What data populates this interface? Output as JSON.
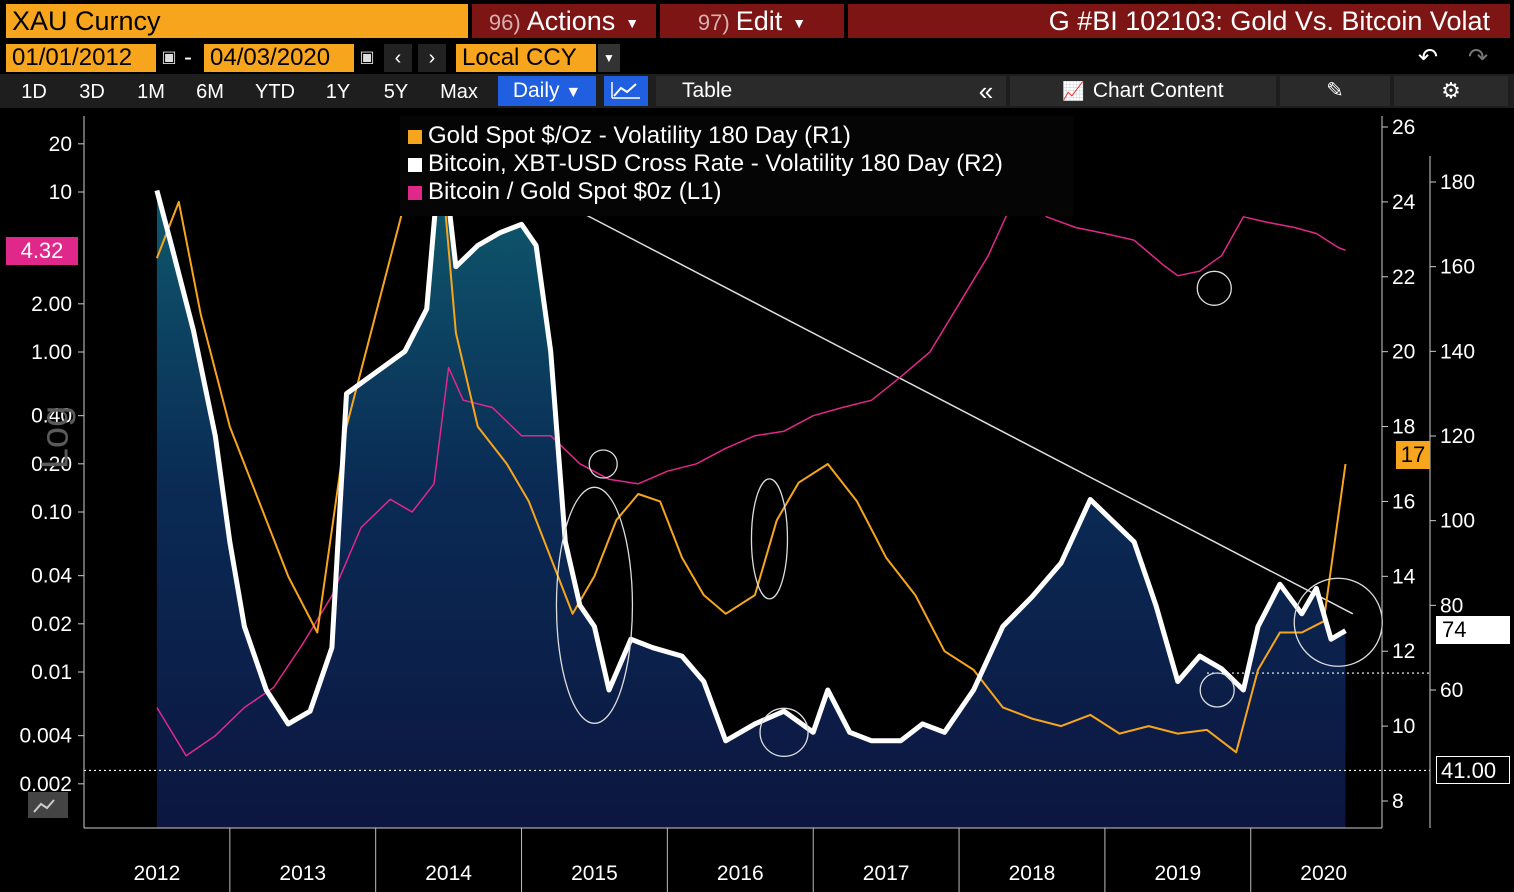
{
  "toolbar": {
    "ticker": "XAU Curncy",
    "actions_num": "96)",
    "actions_label": "Actions",
    "edit_num": "97)",
    "edit_label": "Edit",
    "title": "G #BI 102103: Gold Vs. Bitcoin Volat"
  },
  "date_range": {
    "start": "01/01/2012",
    "separator": "-",
    "end": "04/03/2020",
    "currency": "Local CCY"
  },
  "periods": [
    "1D",
    "3D",
    "1M",
    "6M",
    "YTD",
    "1Y",
    "5Y",
    "Max"
  ],
  "frequency": "Daily",
  "buttons": {
    "table": "Table",
    "collapse": "«",
    "chart_content": "Chart Content"
  },
  "legend": [
    {
      "label": "Gold Spot $/Oz - Volatility 180 Day (R1)",
      "color": "#f7a51c"
    },
    {
      "label": "Bitcoin, XBT-USD Cross Rate - Volatility 180 Day (R2)",
      "color": "#ffffff"
    },
    {
      "label": "Bitcoin / Gold Spot $0z (L1)",
      "color": "#e0288a"
    }
  ],
  "axis_left_title": "Log",
  "tags": {
    "left_value": "4.32",
    "r1_value": "17",
    "r2_value": "74",
    "ref_value": "41.00"
  },
  "chart_data": {
    "type": "line",
    "x_labels": [
      "2012",
      "2013",
      "2014",
      "2015",
      "2016",
      "2017",
      "2018",
      "2019",
      "2020"
    ],
    "y_left_ticks": [
      "20",
      "10",
      "2.00",
      "1.00",
      "0.40",
      "0.20",
      "0.10",
      "0.04",
      "0.02",
      "0.01",
      "0.004",
      "0.002"
    ],
    "y_left_scale": "log",
    "y_r1_ticks": [
      "26",
      "24",
      "22",
      "20",
      "18",
      "16",
      "14",
      "12",
      "10",
      "8"
    ],
    "y_r2_ticks": [
      "180",
      "160",
      "140",
      "120",
      "100",
      "80",
      "60"
    ],
    "series": [
      {
        "name": "Gold Spot $/Oz - Volatility 180 Day (R1)",
        "axis": "R1",
        "color": "#f7a51c",
        "points": [
          [
            2012.0,
            22.5
          ],
          [
            2012.15,
            24.0
          ],
          [
            2012.3,
            21.0
          ],
          [
            2012.5,
            18.0
          ],
          [
            2012.7,
            16.0
          ],
          [
            2012.9,
            14.0
          ],
          [
            2013.1,
            12.5
          ],
          [
            2013.3,
            18.0
          ],
          [
            2013.5,
            21.0
          ],
          [
            2013.7,
            24.0
          ],
          [
            2013.95,
            25.0
          ],
          [
            2014.05,
            20.5
          ],
          [
            2014.2,
            18.0
          ],
          [
            2014.4,
            17.0
          ],
          [
            2014.55,
            16.0
          ],
          [
            2014.7,
            14.5
          ],
          [
            2014.85,
            13.0
          ],
          [
            2015.0,
            14.0
          ],
          [
            2015.15,
            15.5
          ],
          [
            2015.3,
            16.2
          ],
          [
            2015.45,
            16.0
          ],
          [
            2015.6,
            14.5
          ],
          [
            2015.75,
            13.5
          ],
          [
            2015.9,
            13.0
          ],
          [
            2016.1,
            13.5
          ],
          [
            2016.25,
            15.5
          ],
          [
            2016.4,
            16.5
          ],
          [
            2016.6,
            17.0
          ],
          [
            2016.8,
            16.0
          ],
          [
            2017.0,
            14.5
          ],
          [
            2017.2,
            13.5
          ],
          [
            2017.4,
            12.0
          ],
          [
            2017.6,
            11.5
          ],
          [
            2017.8,
            10.5
          ],
          [
            2018.0,
            10.2
          ],
          [
            2018.2,
            10.0
          ],
          [
            2018.4,
            10.3
          ],
          [
            2018.6,
            9.8
          ],
          [
            2018.8,
            10.0
          ],
          [
            2019.0,
            9.8
          ],
          [
            2019.2,
            9.9
          ],
          [
            2019.4,
            9.3
          ],
          [
            2019.55,
            11.5
          ],
          [
            2019.7,
            12.5
          ],
          [
            2019.85,
            12.5
          ],
          [
            2020.0,
            12.8
          ],
          [
            2020.15,
            17.0
          ]
        ]
      },
      {
        "name": "Bitcoin, XBT-USD Cross Rate - Volatility 180 Day (R2)",
        "axis": "R2",
        "color": "#ffffff",
        "points": [
          [
            2012.0,
            178.0
          ],
          [
            2012.1,
            165.0
          ],
          [
            2012.25,
            145.0
          ],
          [
            2012.4,
            120.0
          ],
          [
            2012.5,
            95.0
          ],
          [
            2012.6,
            75.0
          ],
          [
            2012.75,
            60.0
          ],
          [
            2012.9,
            52.0
          ],
          [
            2013.05,
            55.0
          ],
          [
            2013.2,
            70.0
          ],
          [
            2013.3,
            130.0
          ],
          [
            2013.5,
            135.0
          ],
          [
            2013.7,
            140.0
          ],
          [
            2013.85,
            150.0
          ],
          [
            2013.95,
            190.0
          ],
          [
            2014.05,
            160.0
          ],
          [
            2014.2,
            165.0
          ],
          [
            2014.35,
            168.0
          ],
          [
            2014.5,
            170.0
          ],
          [
            2014.6,
            165.0
          ],
          [
            2014.7,
            140.0
          ],
          [
            2014.8,
            95.0
          ],
          [
            2014.9,
            80.0
          ],
          [
            2015.0,
            75.0
          ],
          [
            2015.1,
            60.0
          ],
          [
            2015.25,
            72.0
          ],
          [
            2015.4,
            70.0
          ],
          [
            2015.6,
            68.0
          ],
          [
            2015.75,
            62.0
          ],
          [
            2015.9,
            48.0
          ],
          [
            2016.1,
            52.0
          ],
          [
            2016.3,
            55.0
          ],
          [
            2016.5,
            50.0
          ],
          [
            2016.6,
            60.0
          ],
          [
            2016.75,
            50.0
          ],
          [
            2016.9,
            48.0
          ],
          [
            2017.1,
            48.0
          ],
          [
            2017.25,
            52.0
          ],
          [
            2017.4,
            50.0
          ],
          [
            2017.6,
            60.0
          ],
          [
            2017.8,
            75.0
          ],
          [
            2018.0,
            82.0
          ],
          [
            2018.2,
            90.0
          ],
          [
            2018.4,
            105.0
          ],
          [
            2018.55,
            100.0
          ],
          [
            2018.7,
            95.0
          ],
          [
            2018.85,
            80.0
          ],
          [
            2019.0,
            62.0
          ],
          [
            2019.15,
            68.0
          ],
          [
            2019.3,
            65.0
          ],
          [
            2019.45,
            60.0
          ],
          [
            2019.55,
            75.0
          ],
          [
            2019.7,
            85.0
          ],
          [
            2019.85,
            78.0
          ],
          [
            2019.95,
            84.0
          ],
          [
            2020.05,
            72.0
          ],
          [
            2020.15,
            74.0
          ]
        ]
      },
      {
        "name": "Bitcoin / Gold Spot $0z (L1)",
        "axis": "L1",
        "color": "#e0288a",
        "points": [
          [
            2012.0,
            0.006
          ],
          [
            2012.2,
            0.003
          ],
          [
            2012.4,
            0.004
          ],
          [
            2012.6,
            0.006
          ],
          [
            2012.8,
            0.008
          ],
          [
            2013.0,
            0.015
          ],
          [
            2013.2,
            0.03
          ],
          [
            2013.4,
            0.08
          ],
          [
            2013.6,
            0.12
          ],
          [
            2013.75,
            0.1
          ],
          [
            2013.9,
            0.15
          ],
          [
            2014.0,
            0.8
          ],
          [
            2014.1,
            0.5
          ],
          [
            2014.3,
            0.45
          ],
          [
            2014.5,
            0.3
          ],
          [
            2014.7,
            0.3
          ],
          [
            2014.9,
            0.2
          ],
          [
            2015.1,
            0.16
          ],
          [
            2015.3,
            0.15
          ],
          [
            2015.5,
            0.18
          ],
          [
            2015.7,
            0.2
          ],
          [
            2015.9,
            0.25
          ],
          [
            2016.1,
            0.3
          ],
          [
            2016.3,
            0.32
          ],
          [
            2016.5,
            0.4
          ],
          [
            2016.7,
            0.45
          ],
          [
            2016.9,
            0.5
          ],
          [
            2017.1,
            0.7
          ],
          [
            2017.3,
            1.0
          ],
          [
            2017.5,
            2.0
          ],
          [
            2017.7,
            4.0
          ],
          [
            2017.85,
            8.0
          ],
          [
            2017.95,
            12.0
          ],
          [
            2018.1,
            7.0
          ],
          [
            2018.3,
            6.0
          ],
          [
            2018.5,
            5.5
          ],
          [
            2018.7,
            5.0
          ],
          [
            2018.9,
            3.5
          ],
          [
            2019.0,
            3.0
          ],
          [
            2019.15,
            3.2
          ],
          [
            2019.3,
            4.0
          ],
          [
            2019.45,
            7.0
          ],
          [
            2019.6,
            6.5
          ],
          [
            2019.8,
            6.0
          ],
          [
            2019.95,
            5.5
          ],
          [
            2020.1,
            4.5
          ],
          [
            2020.15,
            4.32
          ]
        ]
      }
    ],
    "trendline": {
      "from": [
        2013.95,
        190.0
      ],
      "to": [
        2020.2,
        78.0
      ],
      "axis": "R2",
      "color": "#dddddd"
    },
    "reference_lines": [
      {
        "axis": "R2",
        "value": 64.0,
        "style": "dotted",
        "from_x": 2019.2
      },
      {
        "axis": "R2",
        "value": 41.0,
        "style": "dotted"
      }
    ],
    "annotation_circles": [
      {
        "x": 2015.0,
        "axis": "R2",
        "y": 80.0
      },
      {
        "x": 2015.06,
        "axis": "R1",
        "y": 17.0
      },
      {
        "x": 2016.2,
        "axis": "R1",
        "y": 15.0
      },
      {
        "x": 2016.3,
        "axis": "R2",
        "y": 50.0
      },
      {
        "x": 2019.25,
        "axis": "L1",
        "y": 2.5
      },
      {
        "x": 2019.27,
        "axis": "R2",
        "y": 60.0
      },
      {
        "x": 2020.1,
        "axis": "R2",
        "y": 76.0
      }
    ]
  }
}
